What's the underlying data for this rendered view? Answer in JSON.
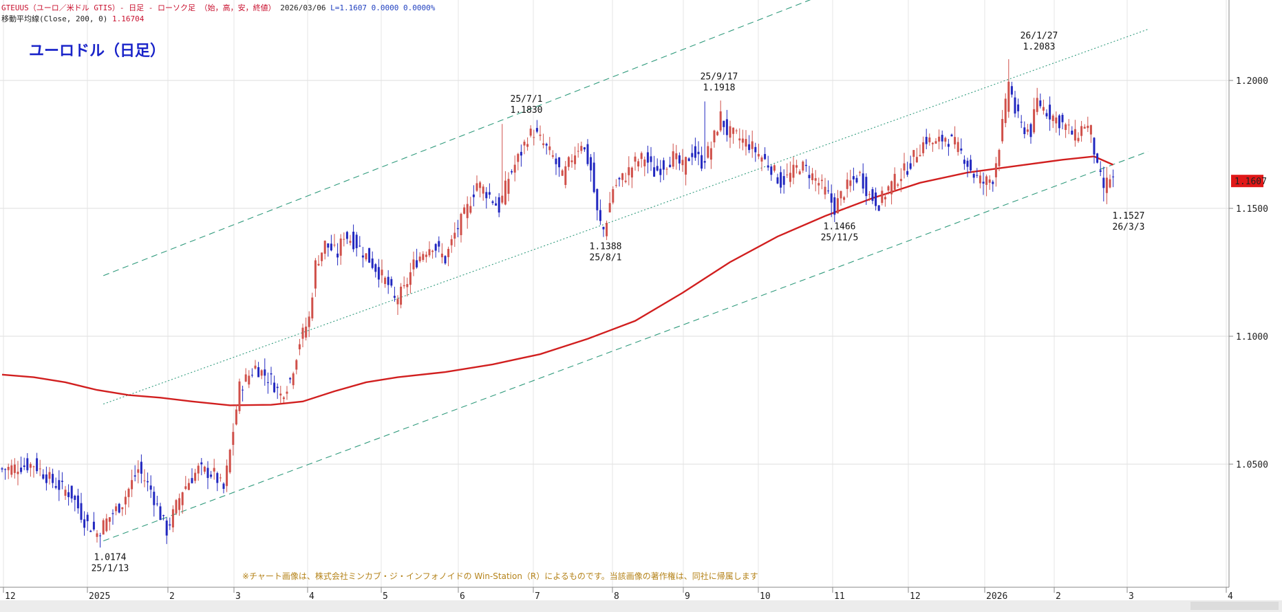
{
  "header": {
    "line1_symbol": "GTEUUS（ユーロ／米ドル GTIS）- 日足 - ローソク足 （始，高，安，終値）",
    "line1_date": "2026/03/06",
    "line1_values": "L=1.1607  0.0000   0.0000%",
    "line2_label": "移動平均線(Close, 200, 0)",
    "line2_value": "1.16704"
  },
  "title": "ユーロドル（日足）",
  "footnote": "※チャート画像は、株式会社ミンカブ・ジ・インフォノイドの Win-Station（R）によるものです。当該画像の著作権は、同社に帰属します",
  "colors": {
    "bull": "#d0504a",
    "bear": "#2228c0",
    "ma": "#d11f1f",
    "channel": "#2f9a7c",
    "price_box": "#e01818"
  },
  "chart_data": {
    "type": "candlestick",
    "xaxis_labels": [
      "12",
      "2025",
      "2",
      "3",
      "4",
      "5",
      "6",
      "7",
      "8",
      "9",
      "10",
      "11",
      "12",
      "2026",
      "2",
      "3",
      "4"
    ],
    "yaxis_ticks": [
      "1.2000",
      "1.1500",
      "1.1000",
      "1.0500"
    ],
    "ylim": [
      1.0,
      1.23
    ],
    "last_price": "1.1607",
    "annotations": [
      {
        "date": "25/1/13",
        "value": "1.0174"
      },
      {
        "date": "25/7/1",
        "value": "1.1830"
      },
      {
        "date": "25/8/1",
        "value": "1.1388"
      },
      {
        "date": "25/9/17",
        "value": "1.1918"
      },
      {
        "date": "25/11/5",
        "value": "1.1466"
      },
      {
        "date": "26/1/27",
        "value": "1.2083"
      },
      {
        "date": "26/3/3",
        "value": "1.1527"
      }
    ],
    "keypoints": [
      {
        "t": 0,
        "close": 1.048
      },
      {
        "t": 10,
        "close": 1.05
      },
      {
        "t": 16,
        "close": 1.043
      },
      {
        "t": 22,
        "close": 1.038
      },
      {
        "t": 26,
        "close": 1.028
      },
      {
        "t": 30,
        "close": 1.023
      },
      {
        "t": 33,
        "close": 1.028
      },
      {
        "t": 38,
        "close": 1.035
      },
      {
        "t": 43,
        "close": 1.048
      },
      {
        "t": 47,
        "close": 1.04
      },
      {
        "t": 50,
        "close": 1.03
      },
      {
        "t": 52,
        "close": 1.024
      },
      {
        "t": 57,
        "close": 1.04
      },
      {
        "t": 62,
        "close": 1.048
      },
      {
        "t": 67,
        "close": 1.046
      },
      {
        "t": 70,
        "close": 1.04
      },
      {
        "t": 72,
        "close": 1.055
      },
      {
        "t": 75,
        "close": 1.08
      },
      {
        "t": 80,
        "close": 1.088
      },
      {
        "t": 85,
        "close": 1.083
      },
      {
        "t": 88,
        "close": 1.077
      },
      {
        "t": 91,
        "close": 1.083
      },
      {
        "t": 94,
        "close": 1.098
      },
      {
        "t": 97,
        "close": 1.107
      },
      {
        "t": 99,
        "close": 1.128
      },
      {
        "t": 102,
        "close": 1.136
      },
      {
        "t": 106,
        "close": 1.132
      },
      {
        "t": 108,
        "close": 1.14
      },
      {
        "t": 112,
        "close": 1.136
      },
      {
        "t": 116,
        "close": 1.13
      },
      {
        "t": 119,
        "close": 1.125
      },
      {
        "t": 122,
        "close": 1.12
      },
      {
        "t": 124,
        "close": 1.114
      },
      {
        "t": 127,
        "close": 1.118
      },
      {
        "t": 130,
        "close": 1.128
      },
      {
        "t": 133,
        "close": 1.133
      },
      {
        "t": 136,
        "close": 1.136
      },
      {
        "t": 140,
        "close": 1.13
      },
      {
        "t": 143,
        "close": 1.14
      },
      {
        "t": 147,
        "close": 1.15
      },
      {
        "t": 150,
        "close": 1.16
      },
      {
        "t": 154,
        "close": 1.155
      },
      {
        "t": 157,
        "close": 1.15
      },
      {
        "t": 160,
        "close": 1.162
      },
      {
        "t": 164,
        "close": 1.172
      },
      {
        "t": 166,
        "close": 1.178
      },
      {
        "t": 168,
        "close": 1.18
      },
      {
        "t": 171,
        "close": 1.175
      },
      {
        "t": 174,
        "close": 1.17
      },
      {
        "t": 177,
        "close": 1.162
      },
      {
        "t": 180,
        "close": 1.17
      },
      {
        "t": 183,
        "close": 1.176
      },
      {
        "t": 186,
        "close": 1.165
      },
      {
        "t": 188,
        "close": 1.148
      },
      {
        "t": 190,
        "close": 1.14
      },
      {
        "t": 193,
        "close": 1.158
      },
      {
        "t": 197,
        "close": 1.163
      },
      {
        "t": 200,
        "close": 1.168
      },
      {
        "t": 203,
        "close": 1.17
      },
      {
        "t": 206,
        "close": 1.164
      },
      {
        "t": 209,
        "close": 1.167
      },
      {
        "t": 212,
        "close": 1.17
      },
      {
        "t": 215,
        "close": 1.166
      },
      {
        "t": 218,
        "close": 1.172
      },
      {
        "t": 221,
        "close": 1.168
      },
      {
        "t": 224,
        "close": 1.174
      },
      {
        "t": 227,
        "close": 1.186
      },
      {
        "t": 229,
        "close": 1.18
      },
      {
        "t": 232,
        "close": 1.178
      },
      {
        "t": 236,
        "close": 1.175
      },
      {
        "t": 240,
        "close": 1.17
      },
      {
        "t": 243,
        "close": 1.166
      },
      {
        "t": 246,
        "close": 1.16
      },
      {
        "t": 249,
        "close": 1.163
      },
      {
        "t": 252,
        "close": 1.167
      },
      {
        "t": 255,
        "close": 1.164
      },
      {
        "t": 258,
        "close": 1.16
      },
      {
        "t": 261,
        "close": 1.155
      },
      {
        "t": 263,
        "close": 1.15
      },
      {
        "t": 265,
        "close": 1.155
      },
      {
        "t": 268,
        "close": 1.16
      },
      {
        "t": 271,
        "close": 1.163
      },
      {
        "t": 274,
        "close": 1.155
      },
      {
        "t": 277,
        "close": 1.152
      },
      {
        "t": 280,
        "close": 1.158
      },
      {
        "t": 283,
        "close": 1.162
      },
      {
        "t": 286,
        "close": 1.166
      },
      {
        "t": 289,
        "close": 1.172
      },
      {
        "t": 292,
        "close": 1.177
      },
      {
        "t": 295,
        "close": 1.175
      },
      {
        "t": 298,
        "close": 1.178
      },
      {
        "t": 301,
        "close": 1.175
      },
      {
        "t": 304,
        "close": 1.17
      },
      {
        "t": 307,
        "close": 1.163
      },
      {
        "t": 310,
        "close": 1.16
      },
      {
        "t": 313,
        "close": 1.162
      },
      {
        "t": 315,
        "close": 1.175
      },
      {
        "t": 317,
        "close": 1.19
      },
      {
        "t": 318,
        "close": 1.2
      },
      {
        "t": 320,
        "close": 1.188
      },
      {
        "t": 322,
        "close": 1.182
      },
      {
        "t": 325,
        "close": 1.18
      },
      {
        "t": 327,
        "close": 1.192
      },
      {
        "t": 330,
        "close": 1.188
      },
      {
        "t": 333,
        "close": 1.185
      },
      {
        "t": 336,
        "close": 1.182
      },
      {
        "t": 339,
        "close": 1.178
      },
      {
        "t": 342,
        "close": 1.183
      },
      {
        "t": 344,
        "close": 1.18
      },
      {
        "t": 346,
        "close": 1.165
      },
      {
        "t": 348,
        "close": 1.158
      },
      {
        "t": 350,
        "close": 1.162
      },
      {
        "t": 351,
        "close": 1.161
      }
    ],
    "special_bars": [
      {
        "t": 31,
        "low": 1.0174
      },
      {
        "t": 158,
        "high": 1.183
      },
      {
        "t": 190,
        "low": 1.1388
      },
      {
        "t": 222,
        "high": 1.1918
      },
      {
        "t": 262,
        "low": 1.1466
      },
      {
        "t": 318,
        "high": 1.2083
      },
      {
        "t": 348,
        "low": 1.1527
      }
    ],
    "ma200": [
      {
        "t": 0,
        "v": 1.085
      },
      {
        "t": 10,
        "v": 1.084
      },
      {
        "t": 20,
        "v": 1.082
      },
      {
        "t": 30,
        "v": 1.079
      },
      {
        "t": 40,
        "v": 1.077
      },
      {
        "t": 50,
        "v": 1.076
      },
      {
        "t": 60,
        "v": 1.0745
      },
      {
        "t": 72,
        "v": 1.073
      },
      {
        "t": 85,
        "v": 1.0732
      },
      {
        "t": 95,
        "v": 1.0745
      },
      {
        "t": 105,
        "v": 1.0785
      },
      {
        "t": 115,
        "v": 1.082
      },
      {
        "t": 125,
        "v": 1.084
      },
      {
        "t": 140,
        "v": 1.086
      },
      {
        "t": 155,
        "v": 1.089
      },
      {
        "t": 170,
        "v": 1.093
      },
      {
        "t": 185,
        "v": 1.099
      },
      {
        "t": 200,
        "v": 1.106
      },
      {
        "t": 215,
        "v": 1.117
      },
      {
        "t": 230,
        "v": 1.129
      },
      {
        "t": 245,
        "v": 1.139
      },
      {
        "t": 260,
        "v": 1.147
      },
      {
        "t": 275,
        "v": 1.154
      },
      {
        "t": 290,
        "v": 1.16
      },
      {
        "t": 305,
        "v": 1.164
      },
      {
        "t": 320,
        "v": 1.1665
      },
      {
        "t": 335,
        "v": 1.169
      },
      {
        "t": 345,
        "v": 1.1703
      },
      {
        "t": 351,
        "v": 1.16704
      }
    ],
    "channel_lines": [
      {
        "style": "dash",
        "t1": 32,
        "v1": 1.1237,
        "t2": 271,
        "v2": 1.2391
      },
      {
        "style": "dash",
        "t1": 32,
        "v1": 1.02,
        "t2": 362,
        "v2": 1.1722
      },
      {
        "style": "dot",
        "t1": 32,
        "v1": 1.0735,
        "t2": 362,
        "v2": 1.22
      }
    ]
  }
}
